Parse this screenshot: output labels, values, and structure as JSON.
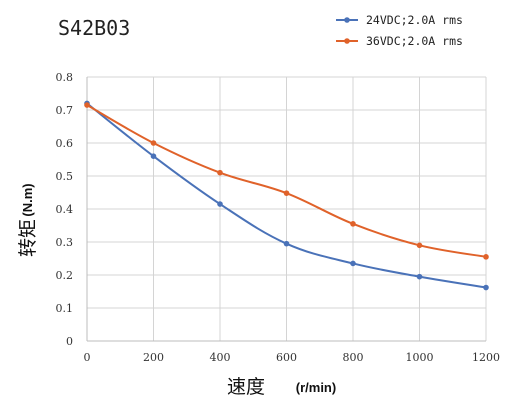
{
  "chart_data": {
    "type": "line",
    "title": "S42B03",
    "xlabel": {
      "text": "速度",
      "unit": "(r/min)"
    },
    "ylabel": {
      "text": "转矩",
      "unit": "(N.m)"
    },
    "xlim": [
      0,
      1200
    ],
    "ylim": [
      0,
      0.8
    ],
    "x_ticks": [
      "0",
      "200",
      "400",
      "600",
      "800",
      "1000",
      "1200"
    ],
    "y_ticks": [
      "0",
      "0.1",
      "0.2",
      "0.3",
      "0.4",
      "0.5",
      "0.6",
      "0.7",
      "0.8"
    ],
    "grid": true,
    "legend_position": "top-right",
    "x": [
      0,
      200,
      400,
      600,
      800,
      1000,
      1200
    ],
    "series": [
      {
        "name": "24VDC;2.0A rms",
        "color": "#4a72b8",
        "values": [
          0.72,
          0.56,
          0.415,
          0.295,
          0.235,
          0.195,
          0.162
        ]
      },
      {
        "name": "36VDC;2.0A rms",
        "color": "#e0622a",
        "values": [
          0.715,
          0.6,
          0.51,
          0.448,
          0.355,
          0.29,
          0.255
        ]
      }
    ]
  }
}
